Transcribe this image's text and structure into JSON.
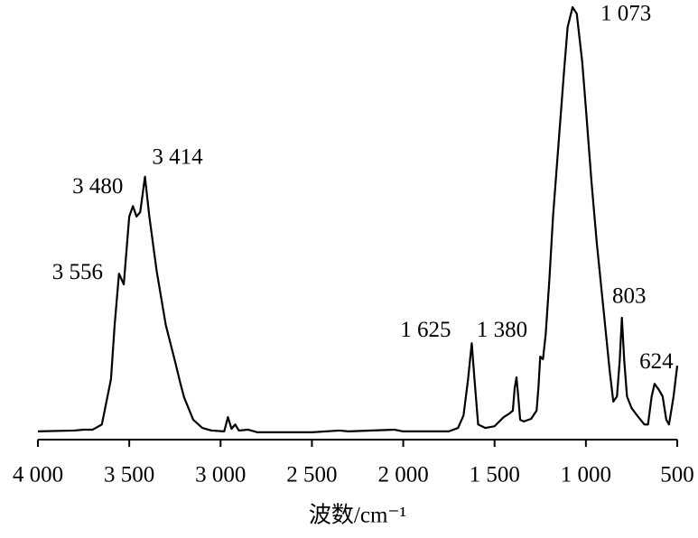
{
  "chart_data": {
    "type": "line",
    "x_label": "波数/cm⁻¹",
    "x": [
      4000,
      3800,
      3750,
      3700,
      3650,
      3600,
      3580,
      3556,
      3530,
      3500,
      3480,
      3460,
      3440,
      3414,
      3390,
      3350,
      3300,
      3250,
      3220,
      3200,
      3150,
      3100,
      3050,
      2980,
      2960,
      2940,
      2920,
      2900,
      2850,
      2800,
      2500,
      2350,
      2300,
      2050,
      2000,
      1750,
      1700,
      1670,
      1645,
      1625,
      1610,
      1590,
      1550,
      1500,
      1450,
      1420,
      1400,
      1390,
      1380,
      1370,
      1360,
      1340,
      1300,
      1270,
      1260,
      1250,
      1235,
      1220,
      1200,
      1180,
      1150,
      1120,
      1100,
      1073,
      1050,
      1020,
      1000,
      970,
      940,
      900,
      870,
      850,
      830,
      815,
      803,
      790,
      775,
      750,
      720,
      680,
      660,
      640,
      624,
      600,
      580,
      560,
      545,
      520,
      500
    ],
    "values": [
      1.9,
      2.1,
      2.3,
      2.3,
      3.5,
      14,
      26.5,
      38.4,
      35.9,
      51.6,
      54,
      51.6,
      52.6,
      60.8,
      51.6,
      39,
      26.5,
      18.2,
      13,
      9.8,
      4.6,
      2.7,
      2.1,
      1.9,
      5.2,
      2.5,
      3.5,
      2.1,
      2.3,
      1.7,
      1.7,
      2.1,
      1.9,
      2.3,
      1.9,
      1.9,
      2.7,
      5.6,
      14,
      22.3,
      14,
      3.5,
      2.7,
      3.1,
      5.2,
      6,
      6.7,
      11.9,
      14.4,
      9.8,
      4.6,
      4.2,
      4.8,
      6.7,
      11.9,
      19.2,
      18.6,
      24.4,
      37,
      51.6,
      68.3,
      85,
      95.4,
      100,
      98.5,
      87.3,
      76.6,
      59.9,
      45.3,
      28.6,
      16,
      8.8,
      10,
      18.2,
      28.2,
      18.2,
      10,
      7.3,
      5.6,
      3.5,
      3.5,
      10,
      12.9,
      11.5,
      10,
      4.6,
      3.5,
      10,
      17.1
    ],
    "color": "#000000",
    "xlim": [
      4000,
      500
    ],
    "ylim": [
      0,
      100
    ],
    "xticks": [
      {
        "value": 4000,
        "label": "4 000"
      },
      {
        "value": 3500,
        "label": "3 500"
      },
      {
        "value": 3000,
        "label": "3 000"
      },
      {
        "value": 2500,
        "label": "2 500"
      },
      {
        "value": 2000,
        "label": "2 000"
      },
      {
        "value": 1500,
        "label": "1 500"
      },
      {
        "value": 1000,
        "label": "1 000"
      },
      500
    ],
    "peaks": [
      {
        "value": 3556,
        "label": "3 556"
      },
      {
        "value": 3480,
        "label": "3 480"
      },
      {
        "value": 3414,
        "label": "3 414"
      },
      {
        "value": 1625,
        "label": "1 625"
      },
      {
        "value": 1380,
        "label": "1 380"
      },
      {
        "value": 1073,
        "label": "1 073"
      },
      803,
      624
    ]
  }
}
